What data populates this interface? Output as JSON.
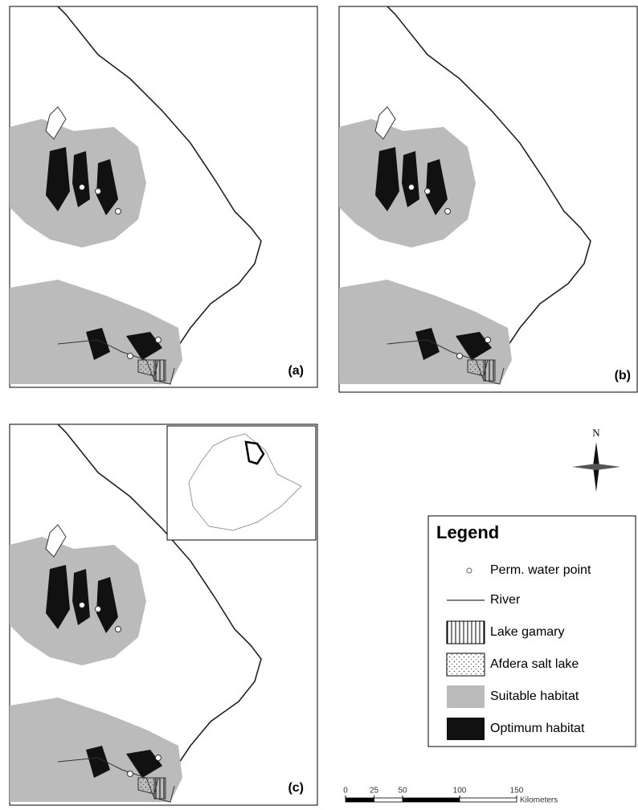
{
  "panels": [
    {
      "label": "(a)"
    },
    {
      "label": "(b)"
    },
    {
      "label": "(c)"
    }
  ],
  "north": "N",
  "legend": {
    "title": "Legend",
    "items": [
      "Perm. water point",
      "River",
      "Lake gamary",
      "Afdera salt lake",
      "Suitable habitat",
      "Optimum habitat"
    ]
  },
  "scale_bar": {
    "ticks": [
      0,
      25,
      50,
      100,
      150
    ],
    "unit": "Kilometers"
  }
}
